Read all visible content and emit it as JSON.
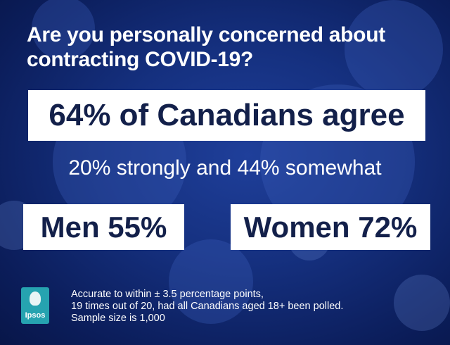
{
  "header": {
    "title_lines": [
      "Are you personally concerned about",
      "contracting COVID-19?"
    ]
  },
  "headline": "64% of Canadians agree",
  "subheadline": "20% strongly and 44% somewhat",
  "breakdown": [
    "Men 55%",
    "Women 72%"
  ],
  "footer": {
    "logo": "Ipsos",
    "note_lines": [
      "Accurate to within ± 3.5 percentage points,",
      "19 times out of 20, had all Canadians aged 18+ been polled.",
      "Sample size is 1,000"
    ]
  }
}
